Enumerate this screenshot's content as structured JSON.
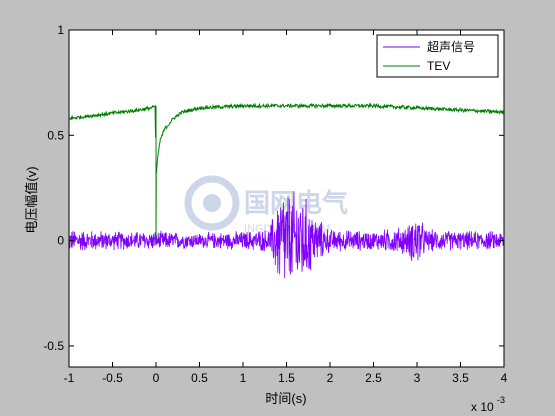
{
  "chart_data": {
    "type": "line",
    "title": "",
    "xlabel": "时间(s)",
    "ylabel": "电压幅值(v)",
    "x_multiplier_label": "x 10",
    "x_multiplier_exponent": "-3",
    "xlim": [
      -1,
      4
    ],
    "ylim": [
      -0.6,
      1
    ],
    "xticks": [
      -1,
      -0.5,
      0,
      0.5,
      1,
      1.5,
      2,
      2.5,
      3,
      3.5,
      4
    ],
    "xtick_labels": [
      "-1",
      "-0.5",
      "0",
      "0.5",
      "1",
      "1.5",
      "2",
      "2.5",
      "3",
      "3.5",
      "4"
    ],
    "yticks": [
      -0.5,
      0,
      0.5,
      1
    ],
    "ytick_labels": [
      "-0.5",
      "0",
      "0.5",
      "1"
    ],
    "grid": false,
    "legend_position": "top-right",
    "series": [
      {
        "name": "超声信号",
        "color": "#7f00ff",
        "description_points": {
          "x": [
            -1,
            -0.5,
            0,
            0.5,
            1,
            1.3,
            1.45,
            1.55,
            1.65,
            1.75,
            1.85,
            2.0,
            2.5,
            2.9,
            3.0,
            3.1,
            3.5,
            4
          ],
          "amplitude": [
            0.06,
            0.05,
            0.05,
            0.04,
            0.05,
            0.06,
            0.3,
            0.25,
            0.28,
            0.2,
            0.12,
            0.06,
            0.05,
            0.08,
            0.16,
            0.06,
            0.05,
            0.05
          ]
        }
      },
      {
        "name": "TEV",
        "color": "#008000",
        "x": [
          -1,
          -0.8,
          -0.6,
          -0.4,
          -0.2,
          -0.05,
          -0.01,
          0.0,
          0.02,
          0.05,
          0.1,
          0.2,
          0.3,
          0.5,
          1.0,
          2.0,
          2.5,
          3.0,
          3.5,
          4.0
        ],
        "y": [
          0.58,
          0.59,
          0.6,
          0.61,
          0.62,
          0.63,
          0.64,
          0.3,
          0.4,
          0.48,
          0.53,
          0.58,
          0.61,
          0.63,
          0.64,
          0.64,
          0.64,
          0.63,
          0.62,
          0.61
        ]
      }
    ]
  },
  "watermark": {
    "text": "国网电气",
    "subtext": "INGDIANOI.COM"
  }
}
